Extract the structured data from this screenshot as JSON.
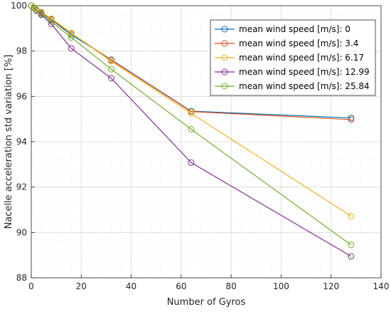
{
  "chart_data": {
    "type": "line",
    "xlabel": "Number of Gyros",
    "ylabel": "Nacelle acceleration std variation [%]",
    "xlim": [
      0,
      140
    ],
    "ylim": [
      88,
      100
    ],
    "xticks": [
      0,
      20,
      40,
      60,
      80,
      100,
      120,
      140
    ],
    "yticks": [
      88,
      90,
      92,
      94,
      96,
      98,
      100
    ],
    "x": [
      0,
      1,
      2,
      4,
      8,
      16,
      32,
      64,
      128
    ],
    "grid": true,
    "minor_grid": true,
    "legend_position": "top-right",
    "series": [
      {
        "name": "mean wind speed [m/s]: 0",
        "color": "#0072BD",
        "values": [
          100,
          99.92,
          99.82,
          99.68,
          99.38,
          98.72,
          97.62,
          95.35,
          95.05
        ]
      },
      {
        "name": "mean wind speed [m/s]: 3.4",
        "color": "#D95319",
        "values": [
          100,
          99.92,
          99.82,
          99.7,
          99.4,
          98.78,
          97.6,
          95.33,
          94.98
        ]
      },
      {
        "name": "mean wind speed [m/s]: 6.17",
        "color": "#EDB120",
        "values": [
          100,
          99.93,
          99.84,
          99.72,
          99.43,
          98.8,
          97.55,
          95.25,
          90.72
        ]
      },
      {
        "name": "mean wind speed [m/s]: 12.99",
        "color": "#7E2F8E",
        "values": [
          100,
          99.9,
          99.78,
          99.6,
          99.2,
          98.12,
          96.8,
          93.08,
          88.95
        ]
      },
      {
        "name": "mean wind speed [m/s]: 25.84",
        "color": "#77AC30",
        "values": [
          100,
          99.91,
          99.8,
          99.64,
          99.3,
          98.6,
          97.2,
          94.55,
          89.45
        ]
      }
    ]
  }
}
